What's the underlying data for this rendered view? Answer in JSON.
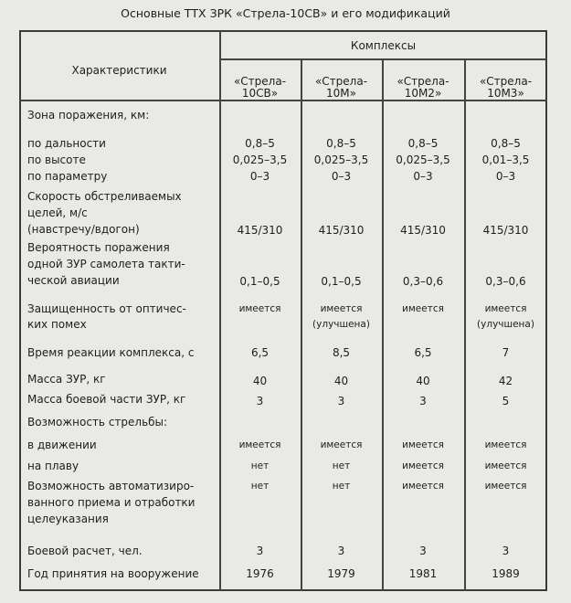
{
  "title": "Основные ТТХ ЗРК «Стрела-10СВ» и его модификаций",
  "header": {
    "characteristics": "Характеристики",
    "group": "Комплексы",
    "columns": [
      [
        "«Стрела-",
        "10СВ»"
      ],
      [
        "«Стрела-",
        "10М»"
      ],
      [
        "«Стрела-",
        "10М2»"
      ],
      [
        "«Стрела-",
        "10М3»"
      ]
    ]
  },
  "rows": [
    {
      "label": [
        "Зона поражения, км:"
      ],
      "values": [
        [],
        [],
        [],
        []
      ]
    },
    {
      "label": [
        "по дальности",
        "по высоте",
        "по параметру"
      ],
      "values": [
        [
          "0,8–5",
          "0,025–3,5",
          "0–3"
        ],
        [
          "0,8–5",
          "0,025–3,5",
          "0–3"
        ],
        [
          "0,8–5",
          "0,025–3,5",
          "0–3"
        ],
        [
          "0,8–5",
          "0,01–3,5",
          "0–3"
        ]
      ]
    },
    {
      "label": [
        "Скорость обстреливаемых",
        "целей, м/с",
        "(навстречу/вдогон)"
      ],
      "values": [
        [
          "415/310"
        ],
        [
          "415/310"
        ],
        [
          "415/310"
        ],
        [
          "415/310"
        ]
      ]
    },
    {
      "label": [
        "Вероятность поражения",
        "одной ЗУР самолета такти-",
        "ческой авиации"
      ],
      "values": [
        [
          "0,1–0,5"
        ],
        [
          "0,1–0,5"
        ],
        [
          "0,3–0,6"
        ],
        [
          "0,3–0,6"
        ]
      ]
    },
    {
      "label": [
        "Защищенность от оптичес-",
        "ких помех"
      ],
      "values": [
        [
          "имеется"
        ],
        [
          "имеется",
          "(улучшена)"
        ],
        [
          "имеется"
        ],
        [
          "имеется",
          "(улучшена)"
        ]
      ]
    },
    {
      "label": [
        "Время реакции комплекса, с"
      ],
      "values": [
        [
          "6,5"
        ],
        [
          "8,5"
        ],
        [
          "6,5"
        ],
        [
          "7"
        ]
      ]
    },
    {
      "label": [
        "Масса ЗУР, кг"
      ],
      "values": [
        [
          "40"
        ],
        [
          "40"
        ],
        [
          "40"
        ],
        [
          "42"
        ]
      ]
    },
    {
      "label": [
        "Масса боевой части ЗУР, кг"
      ],
      "values": [
        [
          "3"
        ],
        [
          "3"
        ],
        [
          "3"
        ],
        [
          "5"
        ]
      ]
    },
    {
      "label": [
        "Возможность стрельбы:"
      ],
      "values": [
        [],
        [],
        [],
        []
      ]
    },
    {
      "label": [
        "в движении"
      ],
      "values": [
        [
          "имеется"
        ],
        [
          "имеется"
        ],
        [
          "имеется"
        ],
        [
          "имеется"
        ]
      ]
    },
    {
      "label": [
        "на плаву"
      ],
      "values": [
        [
          "нет"
        ],
        [
          "нет"
        ],
        [
          "имеется"
        ],
        [
          "имеется"
        ]
      ]
    },
    {
      "label": [
        "Возможность автоматизиро-",
        "ванного приема и отработки",
        "целеуказания"
      ],
      "values": [
        [
          "нет"
        ],
        [
          "нет"
        ],
        [
          "имеется"
        ],
        [
          "имеется"
        ]
      ]
    },
    {
      "label": [
        "Боевой расчет, чел."
      ],
      "values": [
        [
          "3"
        ],
        [
          "3"
        ],
        [
          "3"
        ],
        [
          "3"
        ]
      ]
    },
    {
      "label": [
        "Год принятия на вооружение"
      ],
      "values": [
        [
          "1976"
        ],
        [
          "1979"
        ],
        [
          "1981"
        ],
        [
          "1989"
        ]
      ]
    }
  ]
}
